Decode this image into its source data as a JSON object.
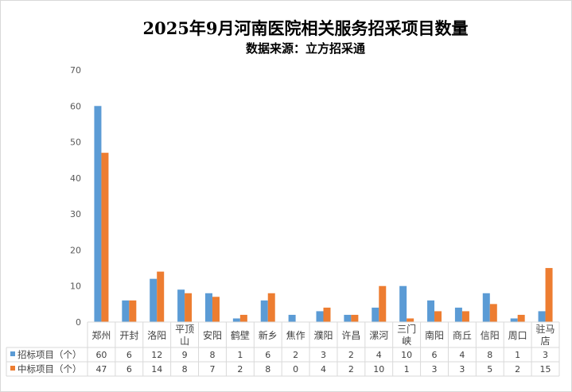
{
  "chart_data": {
    "type": "bar",
    "title": "2025年9月河南医院相关服务招采项目数量",
    "subtitle": "数据来源：立方招采通",
    "categories": [
      "郑州",
      "开封",
      "洛阳",
      "平顶山",
      "安阳",
      "鹤壁",
      "新乡",
      "焦作",
      "濮阳",
      "许昌",
      "漯河",
      "三门峡",
      "南阳",
      "商丘",
      "信阳",
      "周口",
      "驻马店"
    ],
    "category_lines": [
      [
        "郑州"
      ],
      [
        "开封"
      ],
      [
        "洛阳"
      ],
      [
        "平顶",
        "山"
      ],
      [
        "安阳"
      ],
      [
        "鹤壁"
      ],
      [
        "新乡"
      ],
      [
        "焦作"
      ],
      [
        "濮阳"
      ],
      [
        "许昌"
      ],
      [
        "漯河"
      ],
      [
        "三门",
        "峡"
      ],
      [
        "南阳"
      ],
      [
        "商丘"
      ],
      [
        "信阳"
      ],
      [
        "周口"
      ],
      [
        "驻马",
        "店"
      ]
    ],
    "series": [
      {
        "name": "招标项目（个）",
        "color": "#5B9BD5",
        "values": [
          60,
          6,
          12,
          9,
          8,
          1,
          6,
          2,
          3,
          2,
          4,
          10,
          6,
          4,
          8,
          1,
          3
        ]
      },
      {
        "name": "中标项目（个）",
        "color": "#ED7D31",
        "values": [
          47,
          6,
          14,
          8,
          7,
          2,
          8,
          0,
          4,
          2,
          10,
          1,
          3,
          3,
          5,
          2,
          15
        ]
      }
    ],
    "ylim": [
      0,
      70
    ],
    "yticks": [
      0,
      10,
      20,
      30,
      40,
      50,
      60,
      70
    ],
    "grid": false,
    "legend": "data-table-bottom"
  }
}
